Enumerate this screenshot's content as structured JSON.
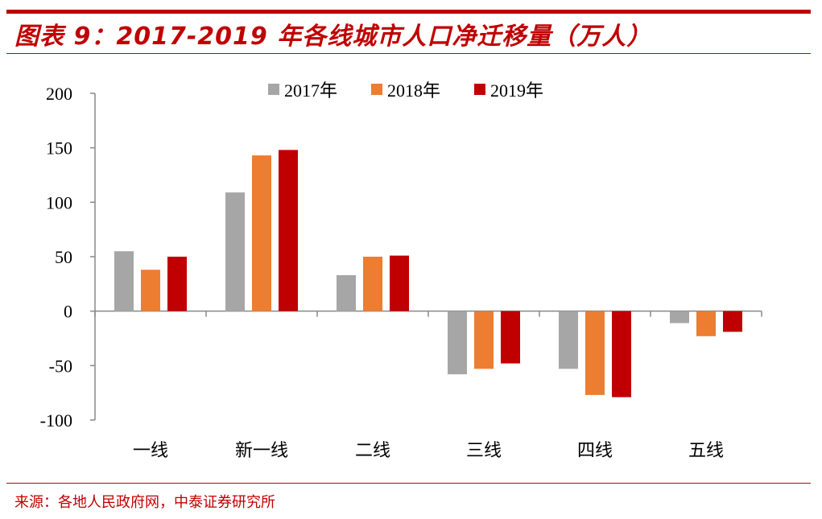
{
  "header": {
    "title": "图表 9：2017-2019 年各线城市人口净迁移量（万人）"
  },
  "footer": {
    "source": "来源：各地人民政府网，中泰证券研究所"
  },
  "colors": {
    "accent": "#c00000",
    "series_2017": "#a6a6a6",
    "series_2018": "#ed7d31",
    "series_2019": "#c00000"
  },
  "chart_data": {
    "type": "bar",
    "title": "2017-2019 年各线城市人口净迁移量（万人）",
    "xlabel": "",
    "ylabel": "",
    "ylim": [
      -100,
      200
    ],
    "yticks": [
      200,
      150,
      100,
      50,
      0,
      -50,
      -100
    ],
    "categories": [
      "一线",
      "新一线",
      "二线",
      "三线",
      "四线",
      "五线"
    ],
    "legend_position": "top-center",
    "series": [
      {
        "name": "2017年",
        "values": [
          55,
          109,
          33,
          -58,
          -53,
          -11
        ]
      },
      {
        "name": "2018年",
        "values": [
          38,
          143,
          50,
          -53,
          -77,
          -23
        ]
      },
      {
        "name": "2019年",
        "values": [
          50,
          148,
          51,
          -48,
          -79,
          -19
        ]
      }
    ]
  }
}
